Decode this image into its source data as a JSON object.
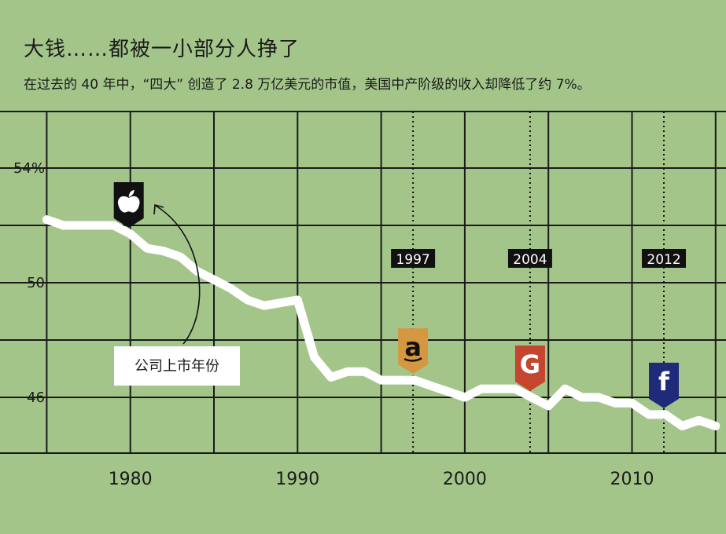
{
  "chart_data": {
    "type": "line",
    "title": "大钱……都被一小部分人挣了",
    "subtitle": "在过去的 40 年中，“四大” 创造了 2.8 万亿美元的市值，美国中产阶级的收入却降低了约 7%。",
    "xlabel": "",
    "ylabel": "",
    "xlim": [
      1975,
      2015
    ],
    "ylim": [
      44,
      56
    ],
    "x_ticks": [
      "1980",
      "1990",
      "2000",
      "2010"
    ],
    "x_tick_values": [
      1980,
      1990,
      2000,
      2010
    ],
    "y_ticks": [
      "54%",
      "50",
      "46"
    ],
    "y_tick_values": [
      54,
      50,
      46
    ],
    "grid": true,
    "series": [
      {
        "x": [
          1975,
          1976,
          1977,
          1978,
          1979,
          1980,
          1981,
          1982,
          1983,
          1984,
          1985,
          1986,
          1987,
          1988,
          1989,
          1990,
          1991,
          1992,
          1993,
          1994,
          1995,
          1996,
          1997,
          1998,
          1999,
          2000,
          2001,
          2002,
          2003,
          2004,
          2005,
          2006,
          2007,
          2008,
          2009,
          2010,
          2011,
          2012,
          2013,
          2014,
          2015
        ],
        "values": [
          52.2,
          52.0,
          52.0,
          52.0,
          52.0,
          51.7,
          51.2,
          51.1,
          50.9,
          50.4,
          50.1,
          49.8,
          49.4,
          49.2,
          49.3,
          49.4,
          47.4,
          46.7,
          46.9,
          46.9,
          46.6,
          46.6,
          46.6,
          46.4,
          46.2,
          46.0,
          46.3,
          46.3,
          46.3,
          46.0,
          45.7,
          46.3,
          46.0,
          46.0,
          45.8,
          45.8,
          45.4,
          45.4,
          45.0,
          45.2,
          45.0
        ]
      }
    ],
    "markers": [
      {
        "x": 1980,
        "icon": "apple-logo-icon",
        "color": "#111111",
        "label": ""
      },
      {
        "x": 1997,
        "icon": "amazon-logo-icon",
        "color": "#d5973f",
        "label": "1997"
      },
      {
        "x": 2004,
        "icon": "google-logo-icon",
        "color": "#c6452e",
        "label": "2004"
      },
      {
        "x": 2012,
        "icon": "facebook-logo-icon",
        "color": "#1f2a7a",
        "label": "2012"
      }
    ],
    "annotation": {
      "text": "公司上市年份"
    },
    "colors": {
      "background": "#a3c58a",
      "line": "#ffffff",
      "grid": "#1a1a1a"
    }
  }
}
